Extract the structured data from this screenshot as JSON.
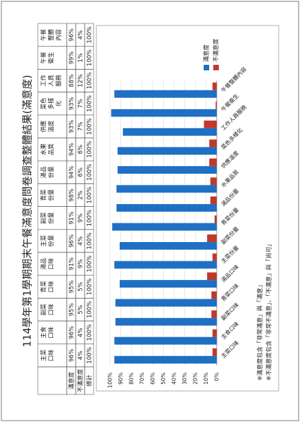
{
  "title": "114學年第1學期期末午餐滿意度問卷調查整體結果(滿意度)",
  "table": {
    "header": [
      "主菜口味",
      "主食口味",
      "副菜口味",
      "青菜口味",
      "湯品口味",
      "主菜份量",
      "副菜份量",
      "青菜份量",
      "湯品份量",
      "水果品質",
      "供應溫度",
      "菜色多樣化",
      "工作人員服務",
      "午餐衛生",
      "午餐整體內容"
    ],
    "rows": [
      [
        "滿意度",
        "96%",
        "96%",
        "95%",
        "95%",
        "91%",
        "96%",
        "91%",
        "98%",
        "94%",
        "94%",
        "93%",
        "93%",
        "88%",
        "99%",
        "96%"
      ],
      [
        "不滿意度",
        "4%",
        "4%",
        "5%",
        "5%",
        "9%",
        "4%",
        "9%",
        "2%",
        "6%",
        "6%",
        "7%",
        "7%",
        "12%",
        "1%",
        "4%"
      ],
      [
        "總計",
        "100%",
        "100%",
        "100%",
        "100%",
        "100%",
        "100%",
        "100%",
        "100%",
        "100%",
        "100%",
        "100%",
        "100%",
        "100%",
        "100%",
        "100%"
      ]
    ]
  },
  "chart_data": {
    "type": "bar",
    "categories": [
      "主菜口味",
      "主食口味",
      "副菜口味",
      "青菜口味",
      "湯品口味",
      "主菜份量",
      "副菜份量",
      "青菜份量",
      "湯品份量",
      "水果品質",
      "供應溫度",
      "菜色多樣化",
      "工作人員服務",
      "午餐衛生",
      "午餐整體內容"
    ],
    "series": [
      {
        "name": "滿意度",
        "color": "#1f6fc5",
        "values": [
          96,
          96,
          95,
          95,
          91,
          96,
          91,
          98,
          94,
          94,
          93,
          93,
          88,
          99,
          96
        ]
      },
      {
        "name": "不滿意度",
        "color": "#c0392b",
        "values": [
          4,
          4,
          5,
          5,
          9,
          4,
          9,
          2,
          6,
          6,
          7,
          7,
          12,
          1,
          4
        ]
      }
    ],
    "ylim": [
      0,
      100
    ],
    "yticks": [
      {
        "value": 0,
        "label": "0%"
      },
      {
        "value": 10,
        "label": "10%"
      },
      {
        "value": 20,
        "label": "20%"
      },
      {
        "value": 30,
        "label": "30%"
      },
      {
        "value": 40,
        "label": "40%"
      },
      {
        "value": 50,
        "label": "50%"
      },
      {
        "value": 60,
        "label": "60%"
      },
      {
        "value": 70,
        "label": "70%"
      },
      {
        "value": 80,
        "label": "80%"
      },
      {
        "value": 90,
        "label": "90%"
      },
      {
        "value": 100,
        "label": "100%"
      }
    ],
    "grid": true
  },
  "notes": [
    "※滿意度包含「非常滿意」與「滿意」",
    "※不滿意度包含「非常不滿意」、「不滿意」與「尚可」"
  ]
}
